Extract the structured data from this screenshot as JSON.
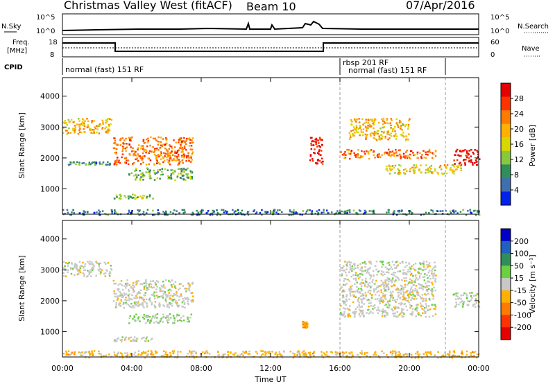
{
  "header": {
    "station": "Christmas Valley West (fitACF)",
    "beam": "Beam 10",
    "date": "07/Apr/2016"
  },
  "top_panels": {
    "nsky_label": "N.Sky",
    "nsky_ticks": [
      "10^5",
      "10^0"
    ],
    "nsearch_label": "N.Search",
    "nsearch_ticks": [
      "10^5",
      "10^0"
    ],
    "freq_label_1": "Freq.",
    "freq_label_2": "[MHz]",
    "freq_ticks": [
      "18",
      "8"
    ],
    "nave_label": "Nave",
    "nave_ticks": [
      "60",
      "0"
    ],
    "cpid_label": "CPID",
    "cpid_segments": [
      {
        "text": "normal (fast) 151 RF",
        "start_h": 0
      },
      {
        "text": "rbsp 201 RF",
        "start_h": 16
      },
      {
        "text": "normal (fast) 151 RF",
        "start_h": 16.3
      }
    ]
  },
  "axes": {
    "xlabel": "Time UT",
    "xticks": [
      "00:00",
      "04:00",
      "08:00",
      "12:00",
      "16:00",
      "20:00",
      "00:00"
    ],
    "ylabel": "Slant Range [km]",
    "yticks": [
      "1000",
      "2000",
      "3000",
      "4000"
    ]
  },
  "power_colorbar": {
    "label": "Power [dB]",
    "ticks": [
      "28",
      "24",
      "20",
      "16",
      "12",
      "8",
      "4"
    ],
    "colors": [
      "#e60000",
      "#ff3300",
      "#ff7a00",
      "#ffb000",
      "#d8d800",
      "#88c83c",
      "#2f8f5a",
      "#3f6fae",
      "#0022ee"
    ]
  },
  "velocity_colorbar": {
    "label": "Velocity [m s⁻¹]",
    "ticks": [
      "200",
      "100",
      "50",
      "15",
      "-15",
      "-50",
      "-100",
      "-200"
    ],
    "colors": [
      "#0000c8",
      "#2060c0",
      "#2f8f5a",
      "#6ad040",
      "#c8c8c8",
      "#ffb000",
      "#ff7a00",
      "#ff3300",
      "#e60000"
    ]
  },
  "chart_data": [
    {
      "type": "heatmap",
      "title": "Power",
      "x_range_hours": [
        0,
        24
      ],
      "y_range_km": [
        180,
        4600
      ],
      "colorbar_range": [
        0,
        30
      ],
      "regions": [
        {
          "t0": 0.0,
          "t1": 2.8,
          "r0": 2800,
          "r1": 3300,
          "level": 18
        },
        {
          "t0": 0.3,
          "t1": 2.8,
          "r0": 1800,
          "r1": 1900,
          "level": 8
        },
        {
          "t0": 2.9,
          "t1": 7.5,
          "r0": 1800,
          "r1": 2700,
          "level": 22
        },
        {
          "t0": 3.8,
          "t1": 7.5,
          "r0": 1300,
          "r1": 1700,
          "level": 10
        },
        {
          "t0": 2.9,
          "t1": 5.2,
          "r0": 700,
          "r1": 850,
          "level": 12
        },
        {
          "t0": 14.2,
          "t1": 15.0,
          "r0": 1800,
          "r1": 2700,
          "level": 28
        },
        {
          "t0": 16.0,
          "t1": 21.5,
          "r0": 2000,
          "r1": 2300,
          "level": 22
        },
        {
          "t0": 16.5,
          "t1": 20.0,
          "r0": 2600,
          "r1": 3300,
          "level": 18
        },
        {
          "t0": 18.5,
          "t1": 23.0,
          "r0": 1500,
          "r1": 1800,
          "level": 16
        },
        {
          "t0": 22.5,
          "t1": 24.0,
          "r0": 1800,
          "r1": 2300,
          "level": 28
        },
        {
          "t0": 0.0,
          "t1": 24.0,
          "r0": 180,
          "r1": 350,
          "level": 6
        }
      ]
    },
    {
      "type": "heatmap",
      "title": "Velocity",
      "x_range_hours": [
        0,
        24
      ],
      "y_range_km": [
        180,
        4600
      ],
      "colorbar_range": [
        -200,
        200
      ],
      "regions": [
        {
          "t0": 0.0,
          "t1": 2.8,
          "r0": 2800,
          "r1": 3300,
          "level": 0
        },
        {
          "t0": 2.9,
          "t1": 7.5,
          "r0": 1800,
          "r1": 2700,
          "level": 0
        },
        {
          "t0": 3.8,
          "t1": 7.5,
          "r0": 1300,
          "r1": 1600,
          "level": 30
        },
        {
          "t0": 2.9,
          "t1": 5.2,
          "r0": 700,
          "r1": 850,
          "level": 0
        },
        {
          "t0": 13.8,
          "t1": 14.1,
          "r0": 1150,
          "r1": 1350,
          "level": -60
        },
        {
          "t0": 16.0,
          "t1": 21.5,
          "r0": 1500,
          "r1": 3300,
          "level": 0
        },
        {
          "t0": 22.5,
          "t1": 24.0,
          "r0": 1800,
          "r1": 2300,
          "level": 0
        },
        {
          "t0": 0.0,
          "t1": 24.0,
          "r0": 180,
          "r1": 400,
          "level": -40
        }
      ]
    }
  ]
}
